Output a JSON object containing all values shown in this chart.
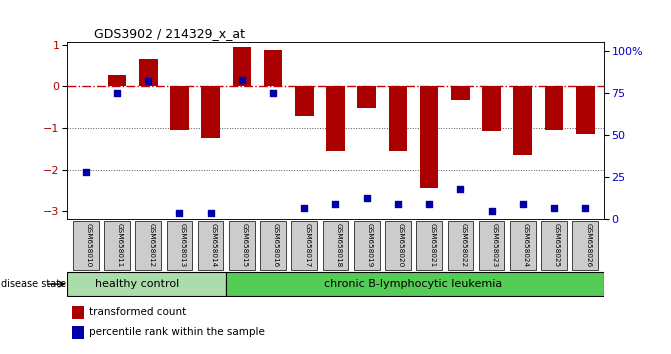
{
  "title": "GDS3902 / 214329_x_at",
  "samples": [
    "GSM658010",
    "GSM658011",
    "GSM658012",
    "GSM658013",
    "GSM658014",
    "GSM658015",
    "GSM658016",
    "GSM658017",
    "GSM658018",
    "GSM658019",
    "GSM658020",
    "GSM658021",
    "GSM658022",
    "GSM658023",
    "GSM658024",
    "GSM658025",
    "GSM658026"
  ],
  "bar_values": [
    0.0,
    0.28,
    0.65,
    -1.05,
    -1.25,
    0.93,
    0.88,
    -0.72,
    -1.55,
    -0.52,
    -1.55,
    -2.45,
    -0.32,
    -1.08,
    -1.65,
    -1.05,
    -1.15
  ],
  "percentile_values": [
    28,
    75,
    82,
    4,
    4,
    83,
    75,
    7,
    9,
    13,
    9,
    9,
    18,
    5,
    9,
    7,
    7
  ],
  "bar_color": "#AA0000",
  "dot_color": "#0000AA",
  "zero_line_color": "#CC0000",
  "dotted_line_color": "#555555",
  "ylim_left": [
    -3.2,
    1.05
  ],
  "ylim_right": [
    0,
    105
  ],
  "yticks_left": [
    -3,
    -2,
    -1,
    0,
    1
  ],
  "yticks_right": [
    0,
    25,
    50,
    75,
    100
  ],
  "ytick_labels_right": [
    "0",
    "25",
    "50",
    "75",
    "100%"
  ],
  "healthy_control_count": 5,
  "healthy_label": "healthy control",
  "leukemia_label": "chronic B-lymphocytic leukemia",
  "disease_state_label": "disease state",
  "legend_bar_label": "transformed count",
  "legend_dot_label": "percentile rank within the sample",
  "healthy_color": "#AADDAA",
  "leukemia_color": "#55CC55",
  "xlabel_box_color": "#CCCCCC",
  "background_color": "#FFFFFF"
}
